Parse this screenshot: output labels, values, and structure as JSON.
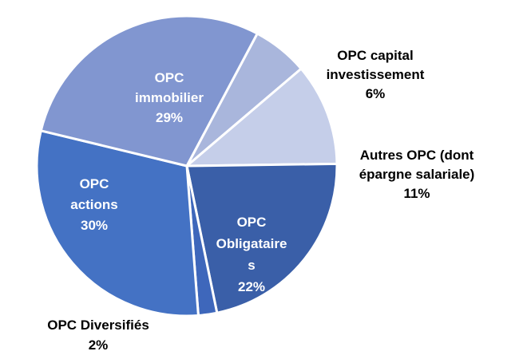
{
  "chart_data": {
    "type": "pie",
    "start_angle_deg": -62,
    "slices": [
      {
        "name_lines": [
          "OPC capital",
          "investissement"
        ],
        "value": 6,
        "label": "6%",
        "color": "#a9b6dc",
        "label_pos": "outside"
      },
      {
        "name_lines": [
          "Autres OPC (dont",
          "épargne salariale)"
        ],
        "value": 11,
        "label": "11%",
        "color": "#c5cee9",
        "label_pos": "outside"
      },
      {
        "name_lines": [
          "OPC",
          "Obligataire",
          "s"
        ],
        "value": 22,
        "label": "22%",
        "color": "#3a5fa8",
        "label_pos": "inside"
      },
      {
        "name_lines": [
          "OPC Diversifiés"
        ],
        "value": 2,
        "label": "2%",
        "color": "#3e67bb",
        "label_pos": "outside"
      },
      {
        "name_lines": [
          "OPC",
          "actions"
        ],
        "value": 30,
        "label": "30%",
        "color": "#4472c4",
        "label_pos": "inside"
      },
      {
        "name_lines": [
          "OPC",
          "immobilier"
        ],
        "value": 29,
        "label": "29%",
        "color": "#8196d0",
        "label_pos": "inside"
      }
    ]
  }
}
